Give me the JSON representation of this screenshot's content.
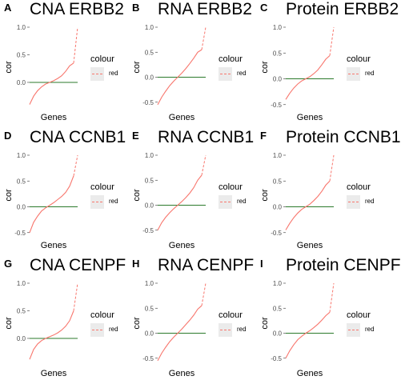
{
  "chart_data": [
    {
      "letter": "A",
      "title": "CNA ERBB2",
      "type": "line",
      "xlabel": "Genes",
      "ylabel": "cor",
      "ylim": [
        -0.45,
        1.0
      ],
      "yticks": [
        0.0,
        0.5,
        1.0
      ],
      "ytick_labels": [
        "0.0",
        "0.5",
        "1.0"
      ],
      "hline": 0,
      "legend_title": "colour",
      "legend_entries": [
        "red"
      ],
      "series": [
        {
          "values": [
            -0.4,
            -0.25,
            -0.15,
            -0.08,
            -0.03,
            0.0,
            0.03,
            0.07,
            0.12,
            0.2,
            0.3,
            0.35,
            1.0
          ]
        }
      ]
    },
    {
      "letter": "B",
      "title": "RNA ERBB2",
      "type": "line",
      "xlabel": "Genes",
      "ylabel": "cor",
      "ylim": [
        -0.6,
        1.0
      ],
      "yticks": [
        -0.5,
        0.0,
        0.5,
        1.0
      ],
      "ytick_labels": [
        "-0.5",
        "0.0",
        "0.5",
        "1.0"
      ],
      "hline": 0,
      "legend_title": "colour",
      "legend_entries": [
        "red"
      ],
      "series": [
        {
          "values": [
            -0.55,
            -0.4,
            -0.28,
            -0.17,
            -0.08,
            0.0,
            0.08,
            0.17,
            0.27,
            0.38,
            0.5,
            0.55,
            1.0
          ]
        }
      ]
    },
    {
      "letter": "C",
      "title": "Protein ERBB2",
      "type": "line",
      "xlabel": "Genes",
      "ylabel": "cor",
      "ylim": [
        -0.55,
        1.0
      ],
      "yticks": [
        -0.5,
        0.0,
        0.5,
        1.0
      ],
      "ytick_labels": [
        "-0.5",
        "0.0",
        "0.5",
        "1.0"
      ],
      "hline": 0,
      "legend_title": "colour",
      "legend_entries": [
        "red"
      ],
      "series": [
        {
          "values": [
            -0.4,
            -0.28,
            -0.18,
            -0.1,
            -0.04,
            0.0,
            0.04,
            0.1,
            0.17,
            0.27,
            0.38,
            0.45,
            1.0
          ]
        }
      ]
    },
    {
      "letter": "D",
      "title": "CNA CCNB1",
      "type": "line",
      "xlabel": "Genes",
      "ylabel": "cor",
      "ylim": [
        -0.55,
        1.0
      ],
      "yticks": [
        -0.5,
        0.0,
        0.5,
        1.0
      ],
      "ytick_labels": [
        "-0.5",
        "0.0",
        "0.5",
        "1.0"
      ],
      "hline": 0,
      "legend_title": "colour",
      "legend_entries": [
        "red"
      ],
      "series": [
        {
          "values": [
            -0.5,
            -0.3,
            -0.18,
            -0.08,
            -0.02,
            0.03,
            0.08,
            0.14,
            0.2,
            0.28,
            0.4,
            0.6,
            1.0
          ]
        }
      ]
    },
    {
      "letter": "E",
      "title": "RNA CCNB1",
      "type": "line",
      "xlabel": "Genes",
      "ylabel": "cor",
      "ylim": [
        -0.6,
        1.0
      ],
      "yticks": [
        -0.5,
        0.0,
        0.5,
        1.0
      ],
      "ytick_labels": [
        "-0.5",
        "0.0",
        "0.5",
        "1.0"
      ],
      "hline": 0,
      "legend_title": "colour",
      "legend_entries": [
        "red"
      ],
      "series": [
        {
          "values": [
            -0.5,
            -0.35,
            -0.24,
            -0.15,
            -0.07,
            0.0,
            0.07,
            0.15,
            0.24,
            0.35,
            0.5,
            0.6,
            1.0
          ]
        }
      ]
    },
    {
      "letter": "F",
      "title": "Protein CCNB1",
      "type": "line",
      "xlabel": "Genes",
      "ylabel": "cor",
      "ylim": [
        -0.55,
        1.0
      ],
      "yticks": [
        -0.5,
        0.0,
        0.5,
        1.0
      ],
      "ytick_labels": [
        "-0.5",
        "0.0",
        "0.5",
        "1.0"
      ],
      "hline": 0,
      "legend_title": "colour",
      "legend_entries": [
        "red"
      ],
      "series": [
        {
          "values": [
            -0.45,
            -0.32,
            -0.21,
            -0.12,
            -0.05,
            0.0,
            0.05,
            0.12,
            0.2,
            0.3,
            0.42,
            0.5,
            1.0
          ]
        }
      ]
    },
    {
      "letter": "G",
      "title": "CNA CENPF",
      "type": "line",
      "xlabel": "Genes",
      "ylabel": "cor",
      "ylim": [
        -0.45,
        1.0
      ],
      "yticks": [
        0.0,
        0.5,
        1.0
      ],
      "ytick_labels": [
        "0.0",
        "0.5",
        "1.0"
      ],
      "hline": 0,
      "legend_title": "colour",
      "legend_entries": [
        "red"
      ],
      "series": [
        {
          "values": [
            -0.38,
            -0.2,
            -0.1,
            -0.04,
            0.0,
            0.03,
            0.06,
            0.1,
            0.15,
            0.22,
            0.32,
            0.5,
            1.0
          ]
        }
      ]
    },
    {
      "letter": "H",
      "title": "RNA CENPF",
      "type": "line",
      "xlabel": "Genes",
      "ylabel": "cor",
      "ylim": [
        -0.6,
        1.0
      ],
      "yticks": [
        -0.5,
        0.0,
        0.5,
        1.0
      ],
      "ytick_labels": [
        "-0.5",
        "0.0",
        "0.5",
        "1.0"
      ],
      "hline": 0,
      "legend_title": "colour",
      "legend_entries": [
        "red"
      ],
      "series": [
        {
          "values": [
            -0.55,
            -0.4,
            -0.28,
            -0.17,
            -0.08,
            0.0,
            0.08,
            0.17,
            0.26,
            0.36,
            0.48,
            0.55,
            1.0
          ]
        }
      ]
    },
    {
      "letter": "I",
      "title": "Protein CENPF",
      "type": "line",
      "xlabel": "Genes",
      "ylabel": "cor",
      "ylim": [
        -0.6,
        1.0
      ],
      "yticks": [
        -0.5,
        0.0,
        0.5,
        1.0
      ],
      "ytick_labels": [
        "-0.5",
        "0.0",
        "0.5",
        "1.0"
      ],
      "hline": 0,
      "legend_title": "colour",
      "legend_entries": [
        "red"
      ],
      "series": [
        {
          "values": [
            -0.5,
            -0.35,
            -0.23,
            -0.13,
            -0.06,
            0.0,
            0.05,
            0.11,
            0.18,
            0.26,
            0.35,
            0.42,
            1.0
          ]
        }
      ]
    }
  ],
  "colors": {
    "curve": "#f8766d",
    "hline": "#2b7a2b",
    "legend_bg": "#ebebeb",
    "tick_text": "#4d4d4d"
  }
}
